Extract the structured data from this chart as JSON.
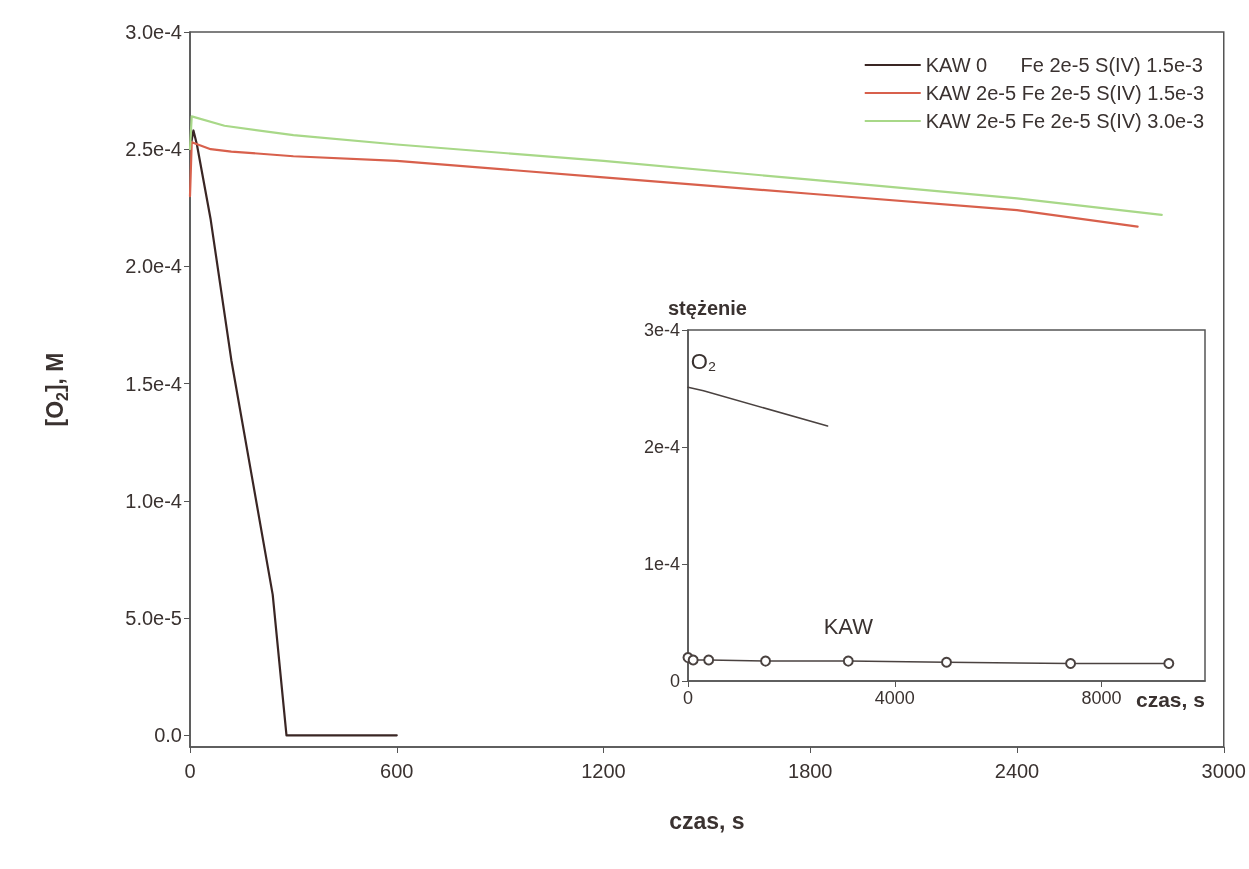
{
  "chart_data": [
    {
      "type": "line",
      "xlabel": "czas, s",
      "ylabel": "[O$_{2}$], M",
      "xlim": [
        0,
        3000
      ],
      "xticks": [
        0,
        600,
        1200,
        1800,
        2400,
        3000
      ],
      "ylim": [
        -5e-06,
        0.0003
      ],
      "yticks": [
        {
          "value": 0,
          "label": "0.0"
        },
        {
          "value": 5e-05,
          "label": "5.0e-5"
        },
        {
          "value": 0.0001,
          "label": "1.0e-4"
        },
        {
          "value": 0.00015,
          "label": "1.5e-4"
        },
        {
          "value": 0.0002,
          "label": "2.0e-4"
        },
        {
          "value": 0.00025,
          "label": "2.5e-4"
        },
        {
          "value": 0.0003,
          "label": "3.0e-4"
        }
      ],
      "legend": "top right",
      "marker": "none",
      "line_style": "solid",
      "grid": false,
      "series": [
        {
          "name": "KAW 0      Fe 2e-5 S(IV) 1.5e-3",
          "color": "#3a2624",
          "x": [
            0,
            10,
            20,
            60,
            120,
            180,
            240,
            280,
            320,
            400,
            500,
            600
          ],
          "values": [
            0.00025,
            0.000258,
            0.000252,
            0.00022,
            0.00016,
            0.00011,
            6e-05,
            0,
            0,
            0,
            0,
            0
          ]
        },
        {
          "name": "KAW 2e-5 Fe 2e-5 S(IV) 1.5e-3",
          "color": "#d8604c",
          "x": [
            0,
            5,
            60,
            120,
            300,
            600,
            1200,
            1800,
            2400,
            2750
          ],
          "values": [
            0.00023,
            0.000253,
            0.00025,
            0.000249,
            0.000247,
            0.000245,
            0.000238,
            0.000231,
            0.000224,
            0.000217
          ]
        },
        {
          "name": "KAW 2e-5 Fe 2e-5 S(IV) 3.0e-3",
          "color": "#a8d888",
          "x": [
            0,
            5,
            100,
            300,
            600,
            1200,
            1800,
            2400,
            2820
          ],
          "values": [
            0.00025,
            0.000264,
            0.00026,
            0.000256,
            0.000252,
            0.000245,
            0.000237,
            0.000229,
            0.000222
          ]
        }
      ]
    },
    {
      "type": "line",
      "xlabel": "czas, s",
      "ylabel": "stężenie",
      "xlim": [
        0,
        10000
      ],
      "xticks": [
        0,
        4000,
        8000
      ],
      "ylim": [
        0,
        0.0003
      ],
      "yticks": [
        {
          "value": 0,
          "label": "0"
        },
        {
          "value": 0.0001,
          "label": "1e-4"
        },
        {
          "value": 0.0002,
          "label": "2e-4"
        },
        {
          "value": 0.0003,
          "label": "3e-4"
        }
      ],
      "legend": false,
      "grid": false,
      "series": [
        {
          "name": "O₂",
          "color": "#4a4240",
          "marker": "none",
          "x": [
            0,
            300,
            2700
          ],
          "values": [
            0.000251,
            0.000248,
            0.000218
          ]
        },
        {
          "name": "KAW",
          "color": "#4a4240",
          "marker": "circle",
          "x": [
            0,
            100,
            400,
            1500,
            3100,
            5000,
            7400,
            9300
          ],
          "values": [
            2e-05,
            1.8e-05,
            1.8e-05,
            1.7e-05,
            1.7e-05,
            1.6e-05,
            1.5e-05,
            1.5e-05
          ]
        }
      ]
    }
  ]
}
